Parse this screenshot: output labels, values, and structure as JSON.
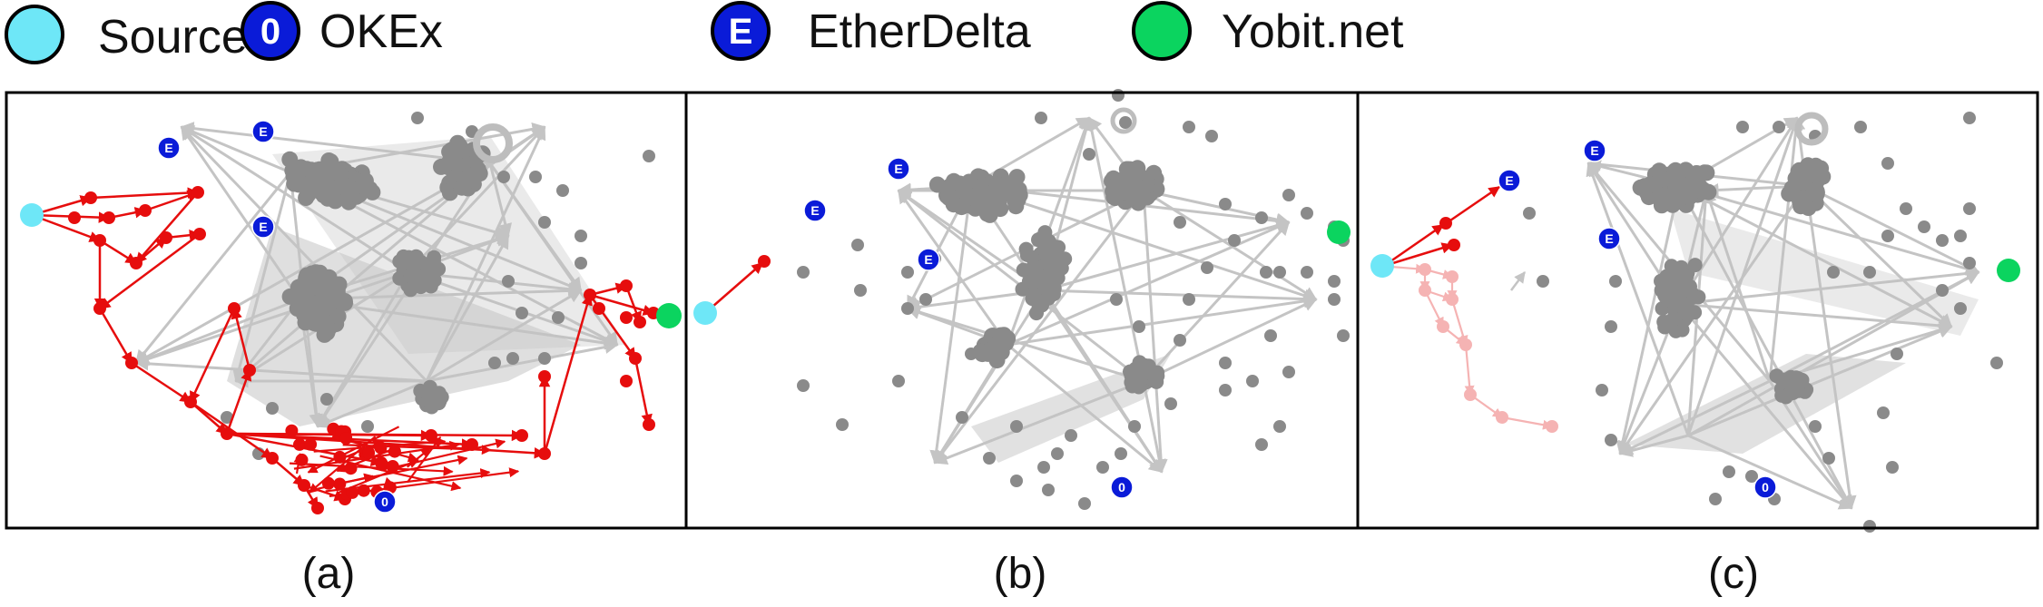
{
  "legend": [
    {
      "name": "source",
      "label": "Source",
      "glyph": "",
      "fill": "#6ee7f7"
    },
    {
      "name": "okex",
      "label": "OKEx",
      "glyph": "0",
      "fill": "#0a1bd8"
    },
    {
      "name": "etherdelta",
      "label": "EtherDelta",
      "glyph": "E",
      "fill": "#0a1bd8"
    },
    {
      "name": "yobit",
      "label": "Yobit.net",
      "glyph": "",
      "fill": "#0bd45f"
    }
  ],
  "panels": [
    {
      "name": "a",
      "caption": "(a)"
    },
    {
      "name": "b",
      "caption": "(b)"
    },
    {
      "name": "c",
      "caption": "(c)"
    }
  ],
  "node_glyphs": {
    "okex": "0",
    "etherdelta": "E"
  },
  "colors": {
    "source": "#6ee7f7",
    "exchange": "#0a1bd8",
    "yobit": "#0bd45f",
    "trace": "#e60d0d",
    "trace_faded": "#f5b3b3",
    "node": "#8a8a8a",
    "edge": "#c4c4c4",
    "frame": "#000000"
  }
}
